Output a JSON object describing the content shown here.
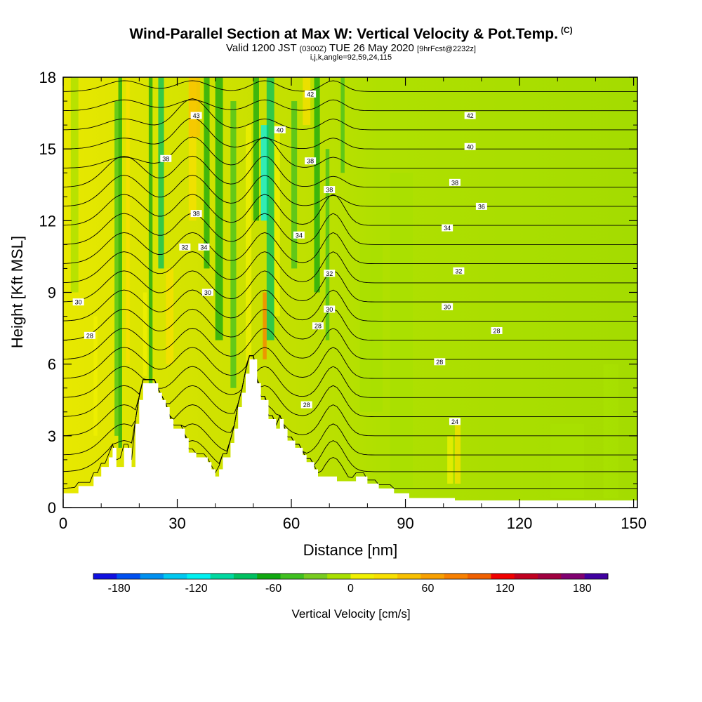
{
  "chart_data": {
    "type": "heatmap",
    "title": "Wind-Parallel Section at Max W: Vertical Velocity & Pot.Temp.",
    "title_mark": "(C)",
    "subtitle_parts": [
      "Valid 1200 JST",
      "(0300Z)",
      "TUE 26 May 2020",
      "[9hrFcst@2232z]"
    ],
    "subtitle2": "i,j,k,angle=92,59,24,115",
    "xlabel": "Distance [nm]",
    "ylabel": "Height [Kft MSL]",
    "xlim": [
      0,
      151
    ],
    "ylim": [
      0,
      18
    ],
    "xticks": [
      "0",
      "30",
      "60",
      "90",
      "120",
      "150"
    ],
    "xtick_values": [
      0,
      30,
      60,
      90,
      120,
      150
    ],
    "yticks": [
      "0",
      "3",
      "6",
      "9",
      "12",
      "15",
      "18"
    ],
    "ytick_values": [
      0,
      3,
      6,
      9,
      12,
      15,
      18
    ],
    "colorbar": {
      "label": "Vertical Velocity [cm/s]",
      "range": [
        -200,
        200
      ],
      "step": 20,
      "tick_labels": [
        "-180",
        "-120",
        "-60",
        "0",
        "60",
        "120",
        "180"
      ],
      "tick_values": [
        -180,
        -120,
        -60,
        0,
        60,
        120,
        180
      ],
      "colors": [
        "#1010e0",
        "#0050f0",
        "#0090f0",
        "#00c8f0",
        "#00f0f0",
        "#00d8a0",
        "#00c060",
        "#10a810",
        "#40c020",
        "#78cc20",
        "#a8e000",
        "#f0f000",
        "#f8e000",
        "#f8c000",
        "#f8a000",
        "#f88000",
        "#f06000",
        "#f00000",
        "#c00020",
        "#a00040",
        "#800070",
        "#4000a0"
      ]
    },
    "isentrope_labels": [
      {
        "text": "43",
        "x": 35,
        "y": 16.4
      },
      {
        "text": "42",
        "x": 65,
        "y": 17.3
      },
      {
        "text": "42",
        "x": 107,
        "y": 16.4
      },
      {
        "text": "40",
        "x": 57,
        "y": 15.8
      },
      {
        "text": "40",
        "x": 107,
        "y": 15.1
      },
      {
        "text": "38",
        "x": 27,
        "y": 14.6
      },
      {
        "text": "38",
        "x": 65,
        "y": 14.5
      },
      {
        "text": "38",
        "x": 103,
        "y": 13.6
      },
      {
        "text": "38",
        "x": 70,
        "y": 13.3
      },
      {
        "text": "38",
        "x": 35,
        "y": 12.3
      },
      {
        "text": "36",
        "x": 110,
        "y": 12.6
      },
      {
        "text": "34",
        "x": 101,
        "y": 11.7
      },
      {
        "text": "34",
        "x": 62,
        "y": 11.4
      },
      {
        "text": "34",
        "x": 37,
        "y": 10.9
      },
      {
        "text": "32",
        "x": 32,
        "y": 10.9
      },
      {
        "text": "32",
        "x": 104,
        "y": 9.9
      },
      {
        "text": "32",
        "x": 70,
        "y": 9.8
      },
      {
        "text": "30",
        "x": 4,
        "y": 8.6
      },
      {
        "text": "30",
        "x": 38,
        "y": 9.0
      },
      {
        "text": "30",
        "x": 101,
        "y": 8.4
      },
      {
        "text": "30",
        "x": 70,
        "y": 8.3
      },
      {
        "text": "28",
        "x": 7,
        "y": 7.2
      },
      {
        "text": "28",
        "x": 67,
        "y": 7.6
      },
      {
        "text": "28",
        "x": 114,
        "y": 7.4
      },
      {
        "text": "28",
        "x": 99,
        "y": 6.1
      },
      {
        "text": "28",
        "x": 64,
        "y": 4.3
      },
      {
        "text": "24",
        "x": 103,
        "y": 3.6
      }
    ],
    "terrain_profile": [
      [
        0,
        0.6
      ],
      [
        4,
        0.6
      ],
      [
        4,
        0.9
      ],
      [
        8,
        0.9
      ],
      [
        8,
        1.3
      ],
      [
        10,
        1.3
      ],
      [
        10,
        1.7
      ],
      [
        12,
        1.7
      ],
      [
        12,
        2.1
      ],
      [
        13,
        2.1
      ],
      [
        13,
        2.5
      ],
      [
        14,
        2.5
      ],
      [
        14,
        1.7
      ],
      [
        16,
        1.7
      ],
      [
        16,
        2.5
      ],
      [
        18,
        2.5
      ],
      [
        18,
        1.7
      ],
      [
        19,
        1.7
      ],
      [
        19,
        3.5
      ],
      [
        20,
        3.5
      ],
      [
        20,
        4.5
      ],
      [
        21,
        4.5
      ],
      [
        21,
        5.2
      ],
      [
        25,
        5.2
      ],
      [
        25,
        4.8
      ],
      [
        26,
        4.8
      ],
      [
        26,
        4.5
      ],
      [
        27,
        4.5
      ],
      [
        27,
        4.2
      ],
      [
        28,
        4.2
      ],
      [
        28,
        3.7
      ],
      [
        29,
        3.7
      ],
      [
        29,
        3.3
      ],
      [
        32,
        3.3
      ],
      [
        32,
        2.9
      ],
      [
        33,
        2.9
      ],
      [
        33,
        2.3
      ],
      [
        35,
        2.3
      ],
      [
        35,
        2.1
      ],
      [
        38,
        2.1
      ],
      [
        38,
        1.9
      ],
      [
        39,
        1.9
      ],
      [
        39,
        1.6
      ],
      [
        40,
        1.6
      ],
      [
        40,
        1.3
      ],
      [
        41,
        1.3
      ],
      [
        41,
        1.6
      ],
      [
        42,
        1.6
      ],
      [
        42,
        2.1
      ],
      [
        44,
        2.1
      ],
      [
        44,
        2.7
      ],
      [
        45,
        2.7
      ],
      [
        45,
        3.3
      ],
      [
        46,
        3.3
      ],
      [
        46,
        4.2
      ],
      [
        47,
        4.2
      ],
      [
        47,
        4.8
      ],
      [
        48,
        4.8
      ],
      [
        48,
        5.6
      ],
      [
        49,
        5.6
      ],
      [
        49,
        6.2
      ],
      [
        51,
        6.2
      ],
      [
        51,
        5.2
      ],
      [
        52,
        5.2
      ],
      [
        52,
        4.5
      ],
      [
        54,
        4.5
      ],
      [
        54,
        3.7
      ],
      [
        56,
        3.7
      ],
      [
        56,
        3.3
      ],
      [
        57,
        3.3
      ],
      [
        57,
        3.7
      ],
      [
        58,
        3.7
      ],
      [
        58,
        3.3
      ],
      [
        59,
        3.3
      ],
      [
        59,
        2.8
      ],
      [
        61,
        2.8
      ],
      [
        61,
        2.5
      ],
      [
        63,
        2.5
      ],
      [
        63,
        2.2
      ],
      [
        64,
        2.2
      ],
      [
        64,
        1.9
      ],
      [
        66,
        1.9
      ],
      [
        66,
        1.6
      ],
      [
        67,
        1.6
      ],
      [
        67,
        1.3
      ],
      [
        72,
        1.3
      ],
      [
        72,
        1.1
      ],
      [
        77,
        1.1
      ],
      [
        77,
        1.3
      ],
      [
        80,
        1.3
      ],
      [
        80,
        1.0
      ],
      [
        83,
        1.0
      ],
      [
        83,
        0.8
      ],
      [
        87,
        0.8
      ],
      [
        87,
        0.6
      ],
      [
        91,
        0.6
      ],
      [
        91,
        0.4
      ],
      [
        103,
        0.4
      ],
      [
        103,
        0.3
      ],
      [
        151,
        0.3
      ]
    ]
  }
}
